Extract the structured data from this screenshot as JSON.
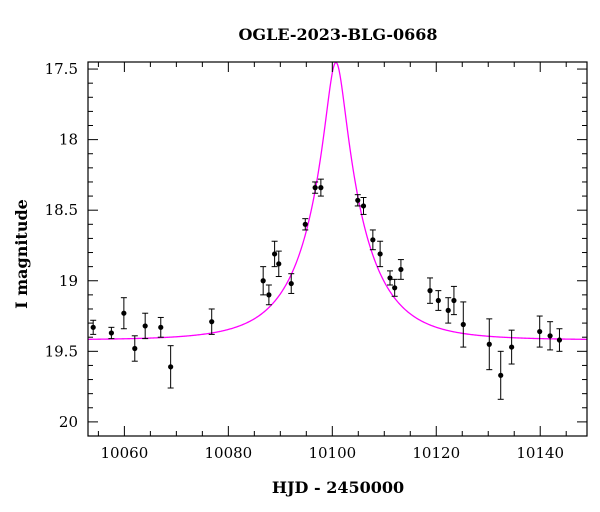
{
  "chart_data": {
    "type": "scatter",
    "title": "OGLE-2023-BLG-0668",
    "xlabel": "HJD - 2450000",
    "ylabel": "I magnitude",
    "xlim": [
      10053,
      10149
    ],
    "ylim": [
      17.45,
      20.1
    ],
    "y_inverted": true,
    "grid": false,
    "x_ticks": [
      10060,
      10080,
      10100,
      10120,
      10140
    ],
    "y_ticks": [
      17.5,
      18,
      18.5,
      19,
      19.5,
      20
    ],
    "x_tick_labels": [
      "10060",
      "10080",
      "10100",
      "10120",
      "10140"
    ],
    "y_tick_labels": [
      "17.5",
      "18",
      "18.5",
      "19",
      "19.5",
      "20"
    ],
    "colors": {
      "model": "#ff00ff",
      "points": "#000000",
      "axes": "#000000"
    },
    "series": [
      {
        "type": "scatter",
        "points": [
          {
            "x": 10054.0,
            "y": 19.33,
            "err": 0.05
          },
          {
            "x": 10057.5,
            "y": 19.37,
            "err": 0.04
          },
          {
            "x": 10059.9,
            "y": 19.23,
            "err": 0.11
          },
          {
            "x": 10062.0,
            "y": 19.48,
            "err": 0.09
          },
          {
            "x": 10064.0,
            "y": 19.32,
            "err": 0.09
          },
          {
            "x": 10067.0,
            "y": 19.33,
            "err": 0.07
          },
          {
            "x": 10068.9,
            "y": 19.61,
            "err": 0.15
          },
          {
            "x": 10076.8,
            "y": 19.29,
            "err": 0.09
          },
          {
            "x": 10086.7,
            "y": 19.0,
            "err": 0.1
          },
          {
            "x": 10087.8,
            "y": 19.1,
            "err": 0.07
          },
          {
            "x": 10088.9,
            "y": 18.81,
            "err": 0.09
          },
          {
            "x": 10089.7,
            "y": 18.88,
            "err": 0.09
          },
          {
            "x": 10092.1,
            "y": 19.02,
            "err": 0.07
          },
          {
            "x": 10094.8,
            "y": 18.6,
            "err": 0.04
          },
          {
            "x": 10096.7,
            "y": 18.34,
            "err": 0.04
          },
          {
            "x": 10097.8,
            "y": 18.34,
            "err": 0.06
          },
          {
            "x": 10104.9,
            "y": 18.43,
            "err": 0.04
          },
          {
            "x": 10106.0,
            "y": 18.47,
            "err": 0.06
          },
          {
            "x": 10107.8,
            "y": 18.71,
            "err": 0.07
          },
          {
            "x": 10109.2,
            "y": 18.81,
            "err": 0.09
          },
          {
            "x": 10111.1,
            "y": 18.98,
            "err": 0.05
          },
          {
            "x": 10112.0,
            "y": 19.05,
            "err": 0.06
          },
          {
            "x": 10113.2,
            "y": 18.92,
            "err": 0.07
          },
          {
            "x": 10118.8,
            "y": 19.07,
            "err": 0.09
          },
          {
            "x": 10120.4,
            "y": 19.14,
            "err": 0.07
          },
          {
            "x": 10122.3,
            "y": 19.21,
            "err": 0.09
          },
          {
            "x": 10123.4,
            "y": 19.14,
            "err": 0.1
          },
          {
            "x": 10125.2,
            "y": 19.31,
            "err": 0.16
          },
          {
            "x": 10130.2,
            "y": 19.45,
            "err": 0.18
          },
          {
            "x": 10132.4,
            "y": 19.67,
            "err": 0.17
          },
          {
            "x": 10134.5,
            "y": 19.47,
            "err": 0.12
          },
          {
            "x": 10139.9,
            "y": 19.36,
            "err": 0.11
          },
          {
            "x": 10141.9,
            "y": 19.39,
            "err": 0.1
          },
          {
            "x": 10143.7,
            "y": 19.42,
            "err": 0.08
          }
        ]
      },
      {
        "type": "line",
        "model": {
          "t0": 10100.7,
          "u0": 0.165,
          "tE": 11.0,
          "baseline": 19.42
        }
      }
    ]
  }
}
